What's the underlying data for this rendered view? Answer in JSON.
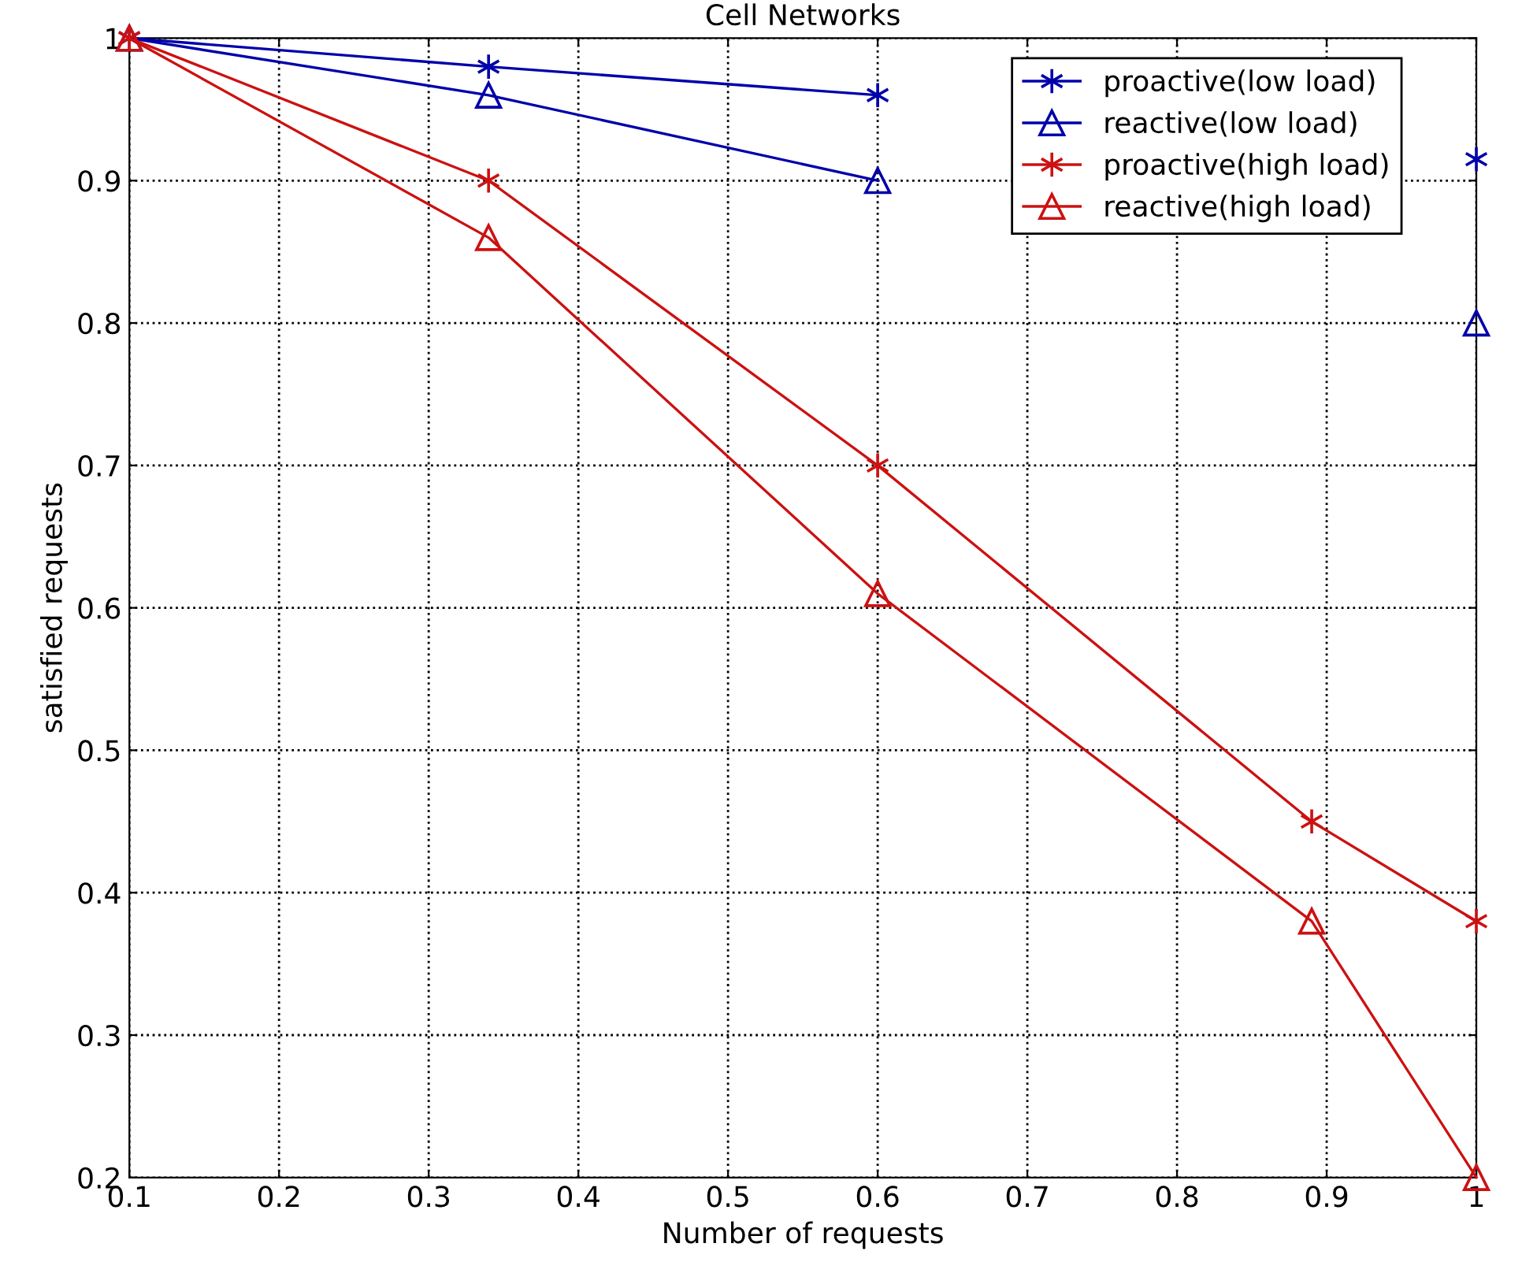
{
  "chart_data": {
    "type": "line",
    "title": "Cell Networks",
    "xlabel": "Number of requests",
    "ylabel": "satisfied requests",
    "x": [
      0.1,
      0.34,
      0.6,
      0.89,
      1.0
    ],
    "series": [
      {
        "name": "proactive(low load)",
        "color": "#0000aa",
        "marker": "cross",
        "values": [
          1.0,
          0.98,
          0.96,
          null,
          0.915
        ]
      },
      {
        "name": "reactive(low load)",
        "color": "#0000aa",
        "marker": "triangle",
        "values": [
          1.0,
          0.96,
          0.9,
          null,
          0.8
        ]
      },
      {
        "name": "proactive(high load)",
        "color": "#cc1111",
        "marker": "cross",
        "values": [
          1.0,
          0.9,
          0.7,
          0.45,
          0.38
        ]
      },
      {
        "name": "reactive(high load)",
        "color": "#cc1111",
        "marker": "triangle",
        "values": [
          1.0,
          0.86,
          0.61,
          0.38,
          0.2
        ]
      }
    ],
    "xlim": [
      0.1,
      1
    ],
    "ylim": [
      0.2,
      1
    ],
    "xticks": [
      0.1,
      0.2,
      0.3,
      0.4,
      0.5,
      0.6,
      0.7,
      0.8,
      0.9,
      1
    ],
    "yticks": [
      0.2,
      0.3,
      0.4,
      0.5,
      0.6,
      0.7,
      0.8,
      0.9,
      1
    ],
    "grid": true,
    "legend": "top right",
    "line_style": "solid"
  }
}
